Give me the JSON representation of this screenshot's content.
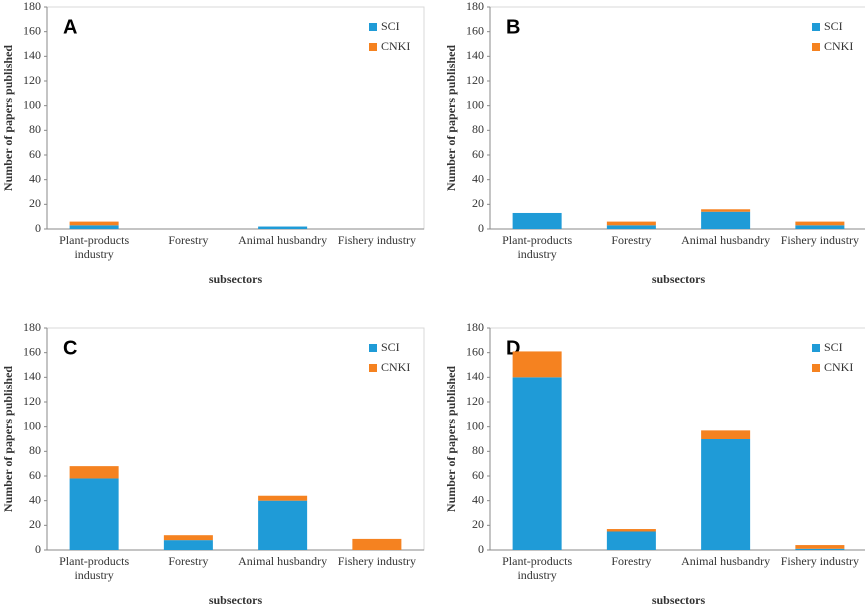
{
  "chart_data": [
    {
      "type": "bar",
      "stacked": true,
      "label": "A",
      "ylabel": "Number of papers published",
      "xlabel": "subsectors",
      "categories": [
        "Plant-products industry",
        "Forestry",
        "Animal husbandry",
        "Fishery industry"
      ],
      "series": [
        {
          "name": "SCI",
          "color": "#1f9bd7",
          "values": [
            3,
            0,
            2,
            0
          ]
        },
        {
          "name": "CNKI",
          "color": "#f58220",
          "values": [
            3,
            0,
            0,
            0
          ]
        }
      ],
      "ylim": [
        0,
        180
      ],
      "yticks": [
        0,
        20,
        40,
        60,
        80,
        100,
        120,
        140,
        160,
        180
      ],
      "legend": "upper right"
    },
    {
      "type": "bar",
      "stacked": true,
      "label": "B",
      "ylabel": "Number of papers published",
      "xlabel": "subsectors",
      "categories": [
        "Plant-products industry",
        "Forestry",
        "Animal husbandry",
        "Fishery industry"
      ],
      "series": [
        {
          "name": "SCI",
          "color": "#1f9bd7",
          "values": [
            13,
            3,
            14,
            3
          ]
        },
        {
          "name": "CNKI",
          "color": "#f58220",
          "values": [
            0,
            3,
            2,
            3
          ]
        }
      ],
      "ylim": [
        0,
        180
      ],
      "yticks": [
        0,
        20,
        40,
        60,
        80,
        100,
        120,
        140,
        160,
        180
      ],
      "legend": "upper right"
    },
    {
      "type": "bar",
      "stacked": true,
      "label": "C",
      "ylabel": "Number of papers published",
      "xlabel": "subsectors",
      "categories": [
        "Plant-products industry",
        "Forestry",
        "Animal husbandry",
        "Fishery industry"
      ],
      "series": [
        {
          "name": "SCI",
          "color": "#1f9bd7",
          "values": [
            58,
            8,
            40,
            0
          ]
        },
        {
          "name": "CNKI",
          "color": "#f58220",
          "values": [
            10,
            4,
            4,
            9
          ]
        }
      ],
      "ylim": [
        0,
        180
      ],
      "yticks": [
        0,
        20,
        40,
        60,
        80,
        100,
        120,
        140,
        160,
        180
      ],
      "legend": "upper right"
    },
    {
      "type": "bar",
      "stacked": true,
      "label": "D",
      "ylabel": "Number of papers published",
      "xlabel": "subsectors",
      "categories": [
        "Plant-products industry",
        "Forestry",
        "Animal husbandry",
        "Fishery industry"
      ],
      "series": [
        {
          "name": "SCI",
          "color": "#1f9bd7",
          "values": [
            140,
            15,
            90,
            1
          ]
        },
        {
          "name": "CNKI",
          "color": "#f58220",
          "values": [
            21,
            2,
            7,
            3
          ]
        }
      ],
      "ylim": [
        0,
        180
      ],
      "yticks": [
        0,
        20,
        40,
        60,
        80,
        100,
        120,
        140,
        160,
        180
      ],
      "legend": "upper right"
    }
  ]
}
